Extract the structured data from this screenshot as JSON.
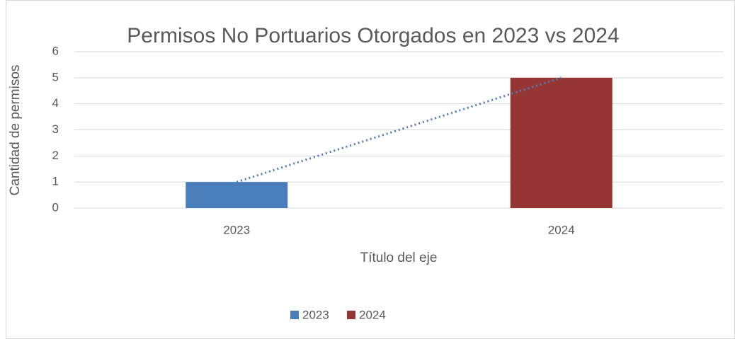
{
  "chart_data": {
    "type": "bar",
    "title": "Permisos No Portuarios Otorgados en 2023 vs 2024",
    "y_label": "Cantidad de permisos",
    "x_label": "Título del eje",
    "categories": [
      "2023",
      "2024"
    ],
    "series": [
      {
        "name": "2023",
        "color": "#4a7ebb",
        "values": [
          1,
          null
        ]
      },
      {
        "name": "2024",
        "color": "#963634",
        "values": [
          null,
          5
        ]
      }
    ],
    "stacked": true,
    "trendline": {
      "style": "dotted",
      "color": "#4a7ebb"
    },
    "ylim": [
      0,
      6
    ],
    "yticks": [
      0,
      1,
      2,
      3,
      4,
      5,
      6
    ],
    "grid": true,
    "legend": "bottom"
  }
}
